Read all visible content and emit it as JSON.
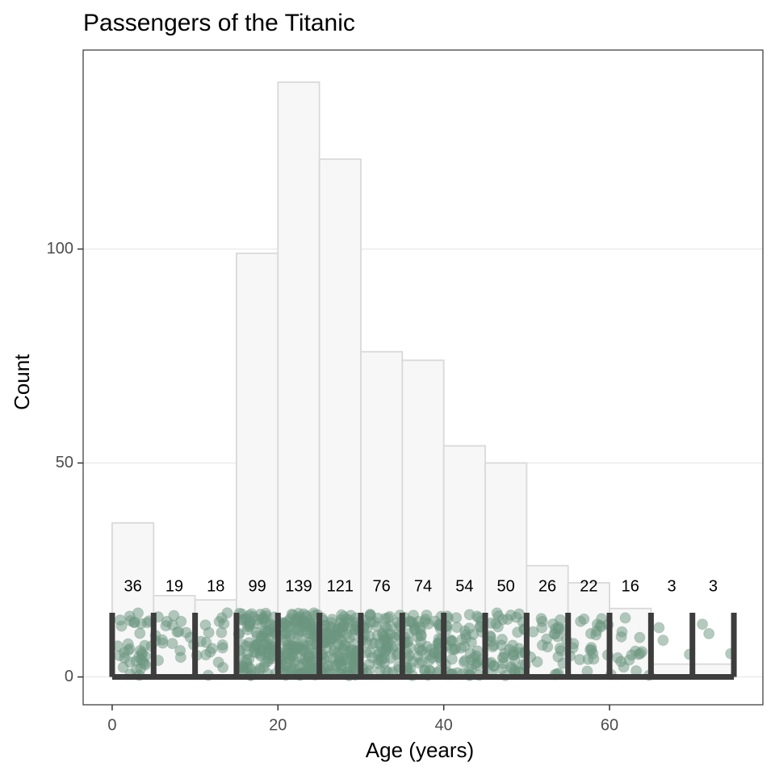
{
  "chart_data": {
    "type": "bar",
    "title": "Passengers of the Titanic",
    "xlabel": "Age (years)",
    "ylabel": "Count",
    "bin_width": 5,
    "bins": [
      {
        "start": 0,
        "end": 5,
        "count": 36
      },
      {
        "start": 5,
        "end": 10,
        "count": 19
      },
      {
        "start": 10,
        "end": 15,
        "count": 18
      },
      {
        "start": 15,
        "end": 20,
        "count": 99
      },
      {
        "start": 20,
        "end": 25,
        "count": 139
      },
      {
        "start": 25,
        "end": 30,
        "count": 121
      },
      {
        "start": 30,
        "end": 35,
        "count": 76
      },
      {
        "start": 35,
        "end": 40,
        "count": 74
      },
      {
        "start": 40,
        "end": 45,
        "count": 54
      },
      {
        "start": 45,
        "end": 50,
        "count": 50
      },
      {
        "start": 50,
        "end": 55,
        "count": 26
      },
      {
        "start": 55,
        "end": 60,
        "count": 22
      },
      {
        "start": 60,
        "end": 65,
        "count": 16
      },
      {
        "start": 65,
        "end": 70,
        "count": 3
      },
      {
        "start": 70,
        "end": 75,
        "count": 3
      }
    ],
    "count_labels": [
      "36",
      "19",
      "18",
      "99",
      "139",
      "121",
      "76",
      "74",
      "54",
      "50",
      "26",
      "22",
      "16",
      "3",
      "3"
    ],
    "x_ticks": [
      "0",
      "20",
      "40",
      "60"
    ],
    "y_ticks": [
      "0",
      "50",
      "100"
    ],
    "xlim": [
      -3.5,
      78.5
    ],
    "ylim": [
      -6.5,
      146.5
    ],
    "grid": true,
    "colors": {
      "bar_fill": "#f7f7f7",
      "bar_stroke": "#d9d9d9",
      "points": "#6b9580",
      "bin_dividers": "#3d3d3d",
      "grid": "#ebebeb",
      "panel_border": "#333333"
    }
  }
}
